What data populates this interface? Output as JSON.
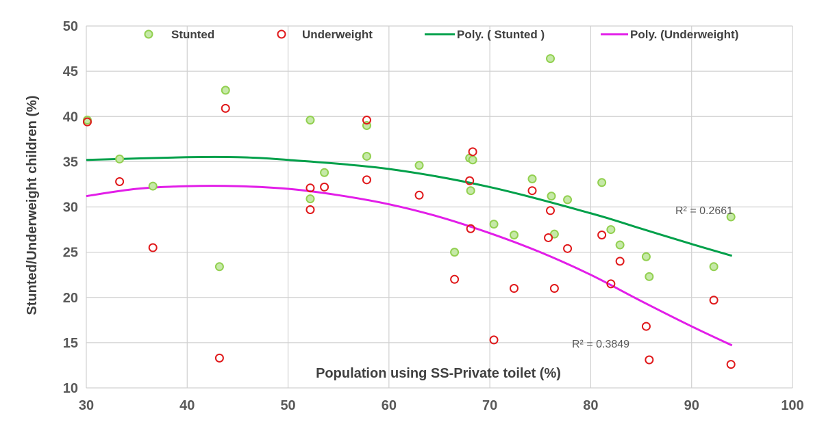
{
  "chart_data": {
    "type": "scatter",
    "xlabel": "Population using SS-Private toilet (%)",
    "ylabel": "Stunted/Underweight children (%)",
    "xlim": [
      30,
      100
    ],
    "ylim": [
      10,
      50
    ],
    "xticks": [
      30,
      40,
      50,
      60,
      70,
      80,
      90,
      100
    ],
    "yticks": [
      10,
      15,
      20,
      25,
      30,
      35,
      40,
      45,
      50
    ],
    "grid": true,
    "legend_position": "top",
    "series": [
      {
        "name": "Stunted",
        "marker": "circle",
        "color": "#92d050",
        "points": [
          [
            30.1,
            39.6
          ],
          [
            33.3,
            35.3
          ],
          [
            36.6,
            32.3
          ],
          [
            43.2,
            23.4
          ],
          [
            43.8,
            42.9
          ],
          [
            52.2,
            39.6
          ],
          [
            52.2,
            30.9
          ],
          [
            53.6,
            33.8
          ],
          [
            57.8,
            39.0
          ],
          [
            57.8,
            35.6
          ],
          [
            63.0,
            34.6
          ],
          [
            66.5,
            25.0
          ],
          [
            68.0,
            35.4
          ],
          [
            68.3,
            35.2
          ],
          [
            68.1,
            31.8
          ],
          [
            70.4,
            28.1
          ],
          [
            72.4,
            26.9
          ],
          [
            74.2,
            33.1
          ],
          [
            76.0,
            46.4
          ],
          [
            76.1,
            31.2
          ],
          [
            76.4,
            27.0
          ],
          [
            77.7,
            30.8
          ],
          [
            81.1,
            32.7
          ],
          [
            82.0,
            27.5
          ],
          [
            82.9,
            25.8
          ],
          [
            85.5,
            24.5
          ],
          [
            85.8,
            22.3
          ],
          [
            92.2,
            23.4
          ],
          [
            93.9,
            28.9
          ]
        ]
      },
      {
        "name": "Underweight",
        "marker": "circle",
        "color": "#e0191b",
        "points": [
          [
            30.1,
            39.4
          ],
          [
            33.3,
            32.8
          ],
          [
            36.6,
            25.5
          ],
          [
            43.2,
            13.3
          ],
          [
            43.8,
            40.9
          ],
          [
            52.2,
            32.1
          ],
          [
            52.2,
            29.7
          ],
          [
            53.6,
            32.2
          ],
          [
            57.8,
            39.6
          ],
          [
            57.8,
            33.0
          ],
          [
            63.0,
            31.3
          ],
          [
            66.5,
            22.0
          ],
          [
            68.0,
            32.9
          ],
          [
            68.3,
            36.1
          ],
          [
            68.1,
            27.6
          ],
          [
            70.4,
            15.3
          ],
          [
            72.4,
            21.0
          ],
          [
            74.2,
            31.8
          ],
          [
            76.0,
            29.6
          ],
          [
            75.8,
            26.6
          ],
          [
            76.4,
            21.0
          ],
          [
            77.7,
            25.4
          ],
          [
            81.1,
            26.9
          ],
          [
            82.0,
            21.5
          ],
          [
            82.9,
            24.0
          ],
          [
            85.5,
            16.8
          ],
          [
            85.8,
            13.1
          ],
          [
            92.2,
            19.7
          ],
          [
            93.9,
            12.6
          ]
        ]
      }
    ],
    "trendlines": [
      {
        "name": "Poly. ( Stunted )",
        "type": "polynomial",
        "color": "#00a04a",
        "points": [
          [
            30,
            35.2
          ],
          [
            40,
            35.5
          ],
          [
            45,
            35.5
          ],
          [
            50,
            35.2
          ],
          [
            60,
            34.2
          ],
          [
            70,
            32.2
          ],
          [
            80,
            29.3
          ],
          [
            85,
            27.6
          ],
          [
            90,
            25.9
          ],
          [
            94,
            24.6
          ]
        ],
        "r2_label": "R² = 0.2661"
      },
      {
        "name": "Poly. (Underweight)",
        "type": "polynomial",
        "color": "#e21ee8",
        "points": [
          [
            30,
            31.2
          ],
          [
            35,
            32.0
          ],
          [
            40,
            32.3
          ],
          [
            45,
            32.3
          ],
          [
            50,
            32.0
          ],
          [
            55,
            31.3
          ],
          [
            60,
            30.3
          ],
          [
            65,
            28.9
          ],
          [
            70,
            27.1
          ],
          [
            75,
            25.0
          ],
          [
            80,
            22.5
          ],
          [
            85,
            19.6
          ],
          [
            90,
            16.8
          ],
          [
            94,
            14.7
          ]
        ],
        "r2_label": "R² = 0.3849"
      }
    ]
  }
}
